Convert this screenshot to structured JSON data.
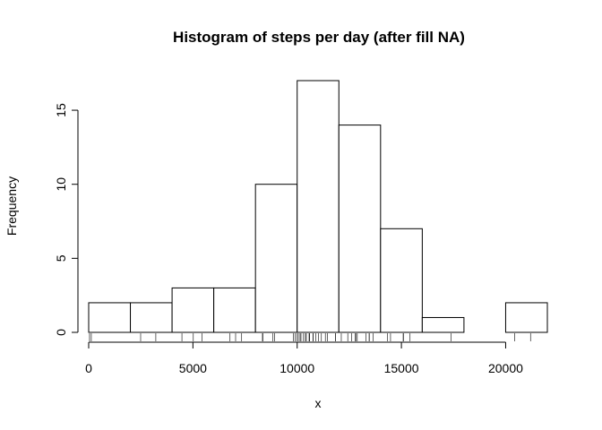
{
  "chart_data": {
    "type": "bar",
    "title": "Histogram of steps per day (after fill NA)",
    "xlabel": "x",
    "ylabel": "Frequency",
    "bin_edges": [
      0,
      2000,
      4000,
      6000,
      8000,
      10000,
      12000,
      14000,
      16000,
      18000,
      20000,
      22000
    ],
    "values": [
      2,
      2,
      3,
      3,
      10,
      17,
      14,
      7,
      1,
      0,
      2
    ],
    "xlim": [
      0,
      22000
    ],
    "ylim": [
      0,
      17
    ],
    "x_ticks": [
      0,
      5000,
      10000,
      15000,
      20000
    ],
    "x_tick_labels": [
      "0",
      "5000",
      "10000",
      "15000",
      "20000"
    ],
    "y_ticks": [
      0,
      5,
      10,
      15
    ],
    "y_tick_labels": [
      "0",
      "5",
      "10",
      "15"
    ],
    "rug": [
      41,
      126,
      2492,
      3219,
      4472,
      5018,
      5441,
      6778,
      7047,
      7336,
      8334,
      8355,
      8821,
      8918,
      9819,
      9900,
      10000,
      10056,
      10139,
      10183,
      10304,
      10395,
      10439,
      10571,
      10600,
      10765,
      10766,
      10890,
      11015,
      11162,
      11352,
      11458,
      11829,
      11834,
      12116,
      12426,
      12608,
      12787,
      12811,
      12883,
      13294,
      13452,
      13460,
      13646,
      14339,
      14478,
      15084,
      15098,
      15414,
      17382,
      20427,
      21194
    ],
    "grid": false,
    "legend": "none"
  }
}
